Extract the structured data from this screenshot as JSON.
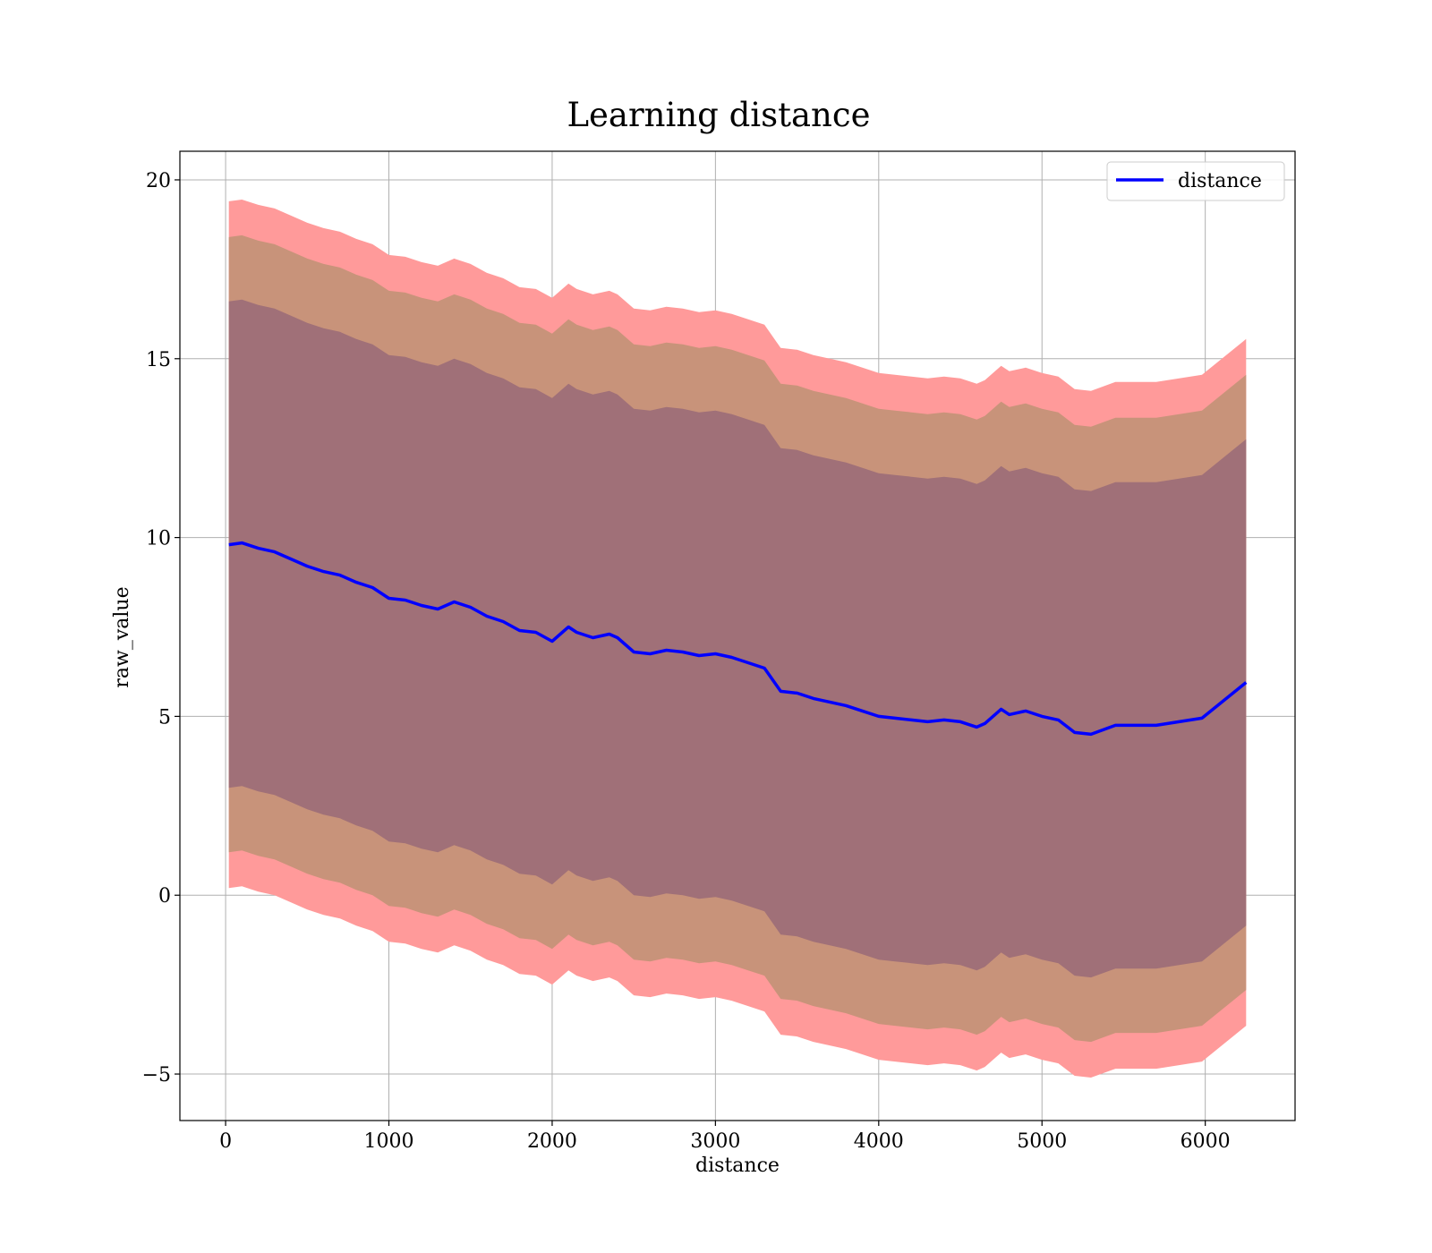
{
  "chart_data": {
    "type": "line",
    "title": "Learning distance",
    "xlabel": "distance",
    "ylabel": "raw_value",
    "xlim": [
      -280,
      6550
    ],
    "ylim": [
      -6.3,
      20.8
    ],
    "xticks": [
      0,
      1000,
      2000,
      3000,
      4000,
      5000,
      6000
    ],
    "xtick_labels": [
      "0",
      "1000",
      "2000",
      "3000",
      "4000",
      "5000",
      "6000"
    ],
    "yticks": [
      -5,
      0,
      5,
      10,
      15,
      20
    ],
    "ytick_labels": [
      "−5",
      "0",
      "5",
      "10",
      "15",
      "20"
    ],
    "grid": true,
    "legend": {
      "placement": "top-right",
      "entries": [
        "distance"
      ]
    },
    "colors": {
      "line": "#0000ff",
      "band_outer": "#ff9a9a",
      "band_middle": "#c8937a",
      "band_inner": "#a07078"
    },
    "x": [
      20,
      100,
      200,
      300,
      400,
      500,
      600,
      700,
      800,
      900,
      1000,
      1100,
      1200,
      1300,
      1400,
      1500,
      1600,
      1700,
      1800,
      1900,
      2000,
      2100,
      2150,
      2250,
      2350,
      2400,
      2500,
      2600,
      2700,
      2800,
      2900,
      3000,
      3100,
      3200,
      3300,
      3400,
      3500,
      3600,
      3700,
      3800,
      3900,
      4000,
      4100,
      4200,
      4300,
      4400,
      4500,
      4600,
      4650,
      4750,
      4800,
      4900,
      5000,
      5100,
      5200,
      5300,
      5450,
      5700,
      5980,
      6250
    ],
    "series": [
      {
        "name": "distance",
        "values": [
          9.8,
          9.85,
          9.7,
          9.6,
          9.4,
          9.2,
          9.05,
          8.95,
          8.75,
          8.6,
          8.3,
          8.25,
          8.1,
          8.0,
          8.2,
          8.05,
          7.8,
          7.65,
          7.4,
          7.35,
          7.1,
          7.5,
          7.35,
          7.2,
          7.3,
          7.2,
          6.8,
          6.75,
          6.85,
          6.8,
          6.7,
          6.75,
          6.65,
          6.5,
          6.35,
          5.7,
          5.65,
          5.5,
          5.4,
          5.3,
          5.15,
          5.0,
          4.95,
          4.9,
          4.85,
          4.9,
          4.85,
          4.7,
          4.8,
          5.2,
          5.05,
          5.15,
          5.0,
          4.9,
          4.55,
          4.5,
          4.75,
          4.75,
          4.95,
          5.95
        ]
      }
    ],
    "bands": [
      {
        "level": "outer",
        "half_width": 9.6
      },
      {
        "level": "middle",
        "half_width": 8.6
      },
      {
        "level": "inner",
        "half_width": 6.8
      }
    ]
  }
}
